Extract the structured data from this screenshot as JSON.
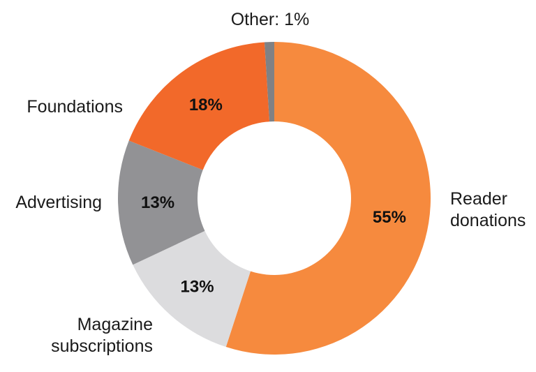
{
  "chart_data": {
    "type": "pie",
    "donut": true,
    "slices": [
      {
        "label": "Reader donations",
        "label_lines": [
          "Reader",
          "donations"
        ],
        "value": 55,
        "value_label": "55%",
        "color": "#F68A3E"
      },
      {
        "label": "Magazine subscriptions",
        "label_lines": [
          "Magazine",
          "subscriptions"
        ],
        "value": 13,
        "value_label": "13%",
        "color": "#DCDCDE"
      },
      {
        "label": "Advertising",
        "label_lines": [
          "Advertising"
        ],
        "value": 13,
        "value_label": "13%",
        "color": "#929295"
      },
      {
        "label": "Foundations",
        "label_lines": [
          "Foundations"
        ],
        "value": 18,
        "value_label": "18%",
        "color": "#F2692A"
      },
      {
        "label": "Other",
        "label_lines": [
          "Other: 1%"
        ],
        "value": 1,
        "value_label": "",
        "color": "#808184"
      }
    ]
  }
}
